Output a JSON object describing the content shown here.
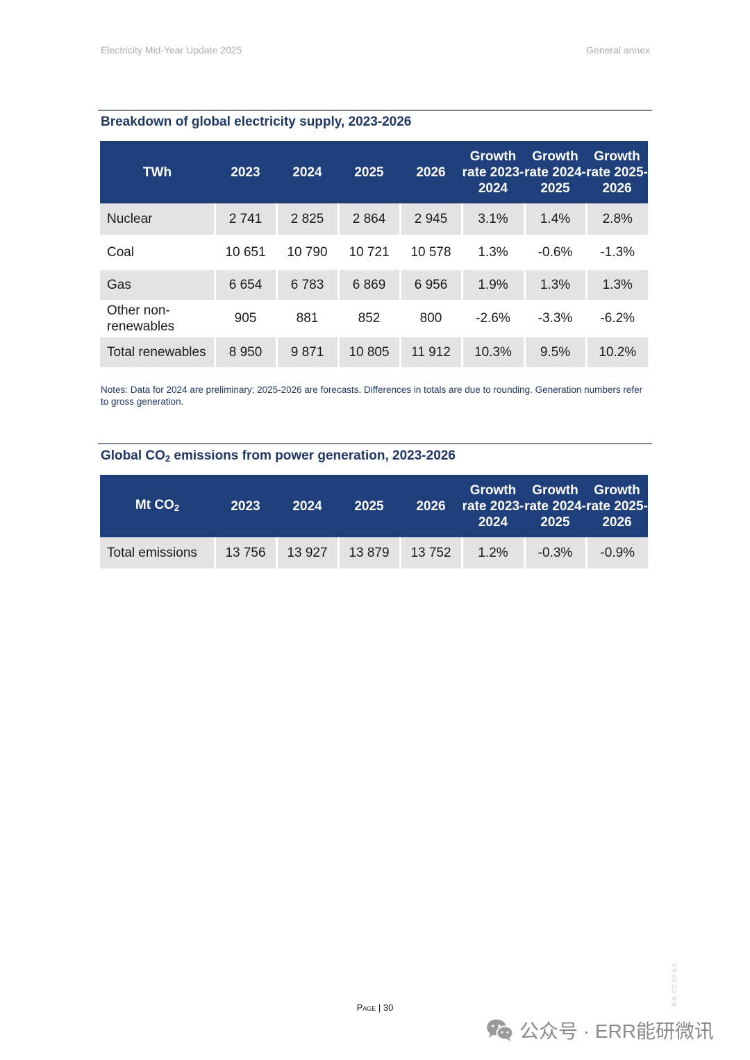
{
  "header": {
    "left": "Electricity Mid-Year Update 2025",
    "right": "General annex"
  },
  "supply_table": {
    "title": "Breakdown of global electricity supply, 2023-2026",
    "unit": "TWh",
    "columns": [
      "2023",
      "2024",
      "2025",
      "2026",
      "Growth rate 2023-2024",
      "Growth rate 2024-2025",
      "Growth rate 2025-2026"
    ],
    "rows": [
      {
        "label": "Nuclear",
        "values": [
          "2 741",
          "2 825",
          "2 864",
          "2 945",
          "3.1%",
          "1.4%",
          "2.8%"
        ]
      },
      {
        "label": "Coal",
        "values": [
          "10 651",
          "10 790",
          "10 721",
          "10 578",
          "1.3%",
          "-0.6%",
          "-1.3%"
        ]
      },
      {
        "label": "Gas",
        "values": [
          "6 654",
          "6 783",
          "6 869",
          "6 956",
          "1.9%",
          "1.3%",
          "1.3%"
        ]
      },
      {
        "label": "Other non-renewables",
        "values": [
          "905",
          "881",
          "852",
          "800",
          "-2.6%",
          "-3.3%",
          "-6.2%"
        ]
      },
      {
        "label": "Total renewables",
        "values": [
          "8 950",
          "9 871",
          "10 805",
          "11 912",
          "10.3%",
          "9.5%",
          "10.2%"
        ]
      }
    ],
    "notes": "Notes: Data for 2024 are preliminary; 2025-2026 are forecasts. Differences in totals are due to rounding. Generation numbers refer to gross generation."
  },
  "emissions_table": {
    "title_main": "Global CO",
    "title_sub": "2",
    "title_rest": " emissions from power generation, 2023-2026",
    "unit_main": "Mt CO",
    "unit_sub": "2",
    "columns": [
      "2023",
      "2024",
      "2025",
      "2026",
      "Growth rate 2023-2024",
      "Growth rate 2024-2025",
      "Growth rate 2025-2026"
    ],
    "rows": [
      {
        "label": "Total emissions",
        "values": [
          "13 756",
          "13 927",
          "13 879",
          "13 752",
          "1.2%",
          "-0.3%",
          "-0.9%"
        ]
      }
    ]
  },
  "footer": {
    "page_word": "Page",
    "page_sep": " | ",
    "page_number": "30",
    "license": "IEA. CC BY 4.0.",
    "watermark_text": "公众号 · ERR能研微讯",
    "watermark_icon": "wechat-icon"
  }
}
